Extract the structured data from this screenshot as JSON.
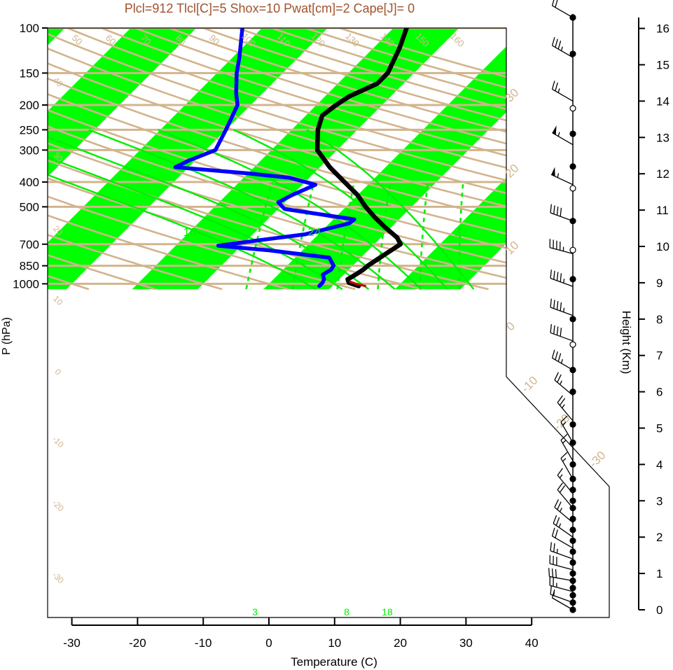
{
  "title": "Plcl=912 Tlcl[C]=5 Shox=10 Pwat[cm]=2 Cape[J]= 0",
  "colors": {
    "title": "#a0522d",
    "stripe": "#00ff00",
    "isobar": "#d2b48c",
    "adiabat": "#d2b48c",
    "moist": "#00ee00",
    "temperature": "#000000",
    "dewpoint": "#0000ff",
    "parcel": "#cc0000"
  },
  "chart_data": {
    "type": "skew-t",
    "title": "Plcl=912 Tlcl[C]=5 Shox=10 Pwat[cm]=2 Cape[J]= 0",
    "xlabel": "Temperature (C)",
    "ylabel": "P (hPa)",
    "y2label": "Height (Km)",
    "x_ticks": [
      "-30",
      "-20",
      "-10",
      "0",
      "10",
      "20",
      "30",
      "40"
    ],
    "p_ticks": [
      "100",
      "150",
      "200",
      "250",
      "300",
      "400",
      "500",
      "700",
      "850",
      "1000"
    ],
    "height_ticks": [
      "0",
      "1",
      "2",
      "3",
      "4",
      "5",
      "6",
      "7",
      "8",
      "9",
      "10",
      "11",
      "12",
      "13",
      "14",
      "15",
      "16"
    ],
    "xlim": [
      -33,
      52
    ],
    "plim": [
      1050,
      100
    ],
    "isotherm_labels": [
      "-30",
      "-20",
      "-10",
      "0",
      "10",
      "20",
      "30"
    ],
    "dry_adiabat_labels": [
      "50",
      "60",
      "70",
      "80",
      "90",
      "100",
      "110",
      "120",
      "130",
      "140",
      "150",
      "160"
    ],
    "mixing_ratio_labels": [
      "3",
      "8",
      "18"
    ],
    "moist_adiabat_labels": [
      "16",
      "24",
      "32"
    ],
    "left_edge_labels": [
      "40",
      "30",
      "20",
      "10",
      "0",
      "-10",
      "-20",
      "-30"
    ],
    "series": [
      {
        "name": "Temperature",
        "points": [
          [
            1020,
            14
          ],
          [
            990,
            12
          ],
          [
            960,
            11.3
          ],
          [
            920,
            11.8
          ],
          [
            880,
            12.2
          ],
          [
            850,
            12.3
          ],
          [
            800,
            12.8
          ],
          [
            750,
            13.4
          ],
          [
            700,
            14
          ],
          [
            660,
            12.5
          ],
          [
            600,
            9
          ],
          [
            550,
            6
          ],
          [
            500,
            3
          ],
          [
            450,
            0
          ],
          [
            400,
            -4
          ],
          [
            350,
            -8.5
          ],
          [
            300,
            -13
          ],
          [
            250,
            -16
          ],
          [
            220,
            -17.5
          ],
          [
            200,
            -17
          ],
          [
            185,
            -16.3
          ],
          [
            165,
            -14
          ],
          [
            150,
            -14
          ],
          [
            120,
            -16
          ],
          [
            100,
            -18
          ]
        ]
      },
      {
        "name": "Dewpoint",
        "points": [
          [
            1020,
            8
          ],
          [
            990,
            8
          ],
          [
            960,
            7.7
          ],
          [
            920,
            6.8
          ],
          [
            880,
            7.3
          ],
          [
            850,
            7.1
          ],
          [
            790,
            5.2
          ],
          [
            740,
            -5
          ],
          [
            710,
            -13.5
          ],
          [
            675,
            -8
          ],
          [
            640,
            -2
          ],
          [
            580,
            3
          ],
          [
            560,
            3.2
          ],
          [
            510,
            -9
          ],
          [
            480,
            -11
          ],
          [
            450,
            -10
          ],
          [
            410,
            -8
          ],
          [
            385,
            -13
          ],
          [
            370,
            -20
          ],
          [
            350,
            -32
          ],
          [
            330,
            -31
          ],
          [
            300,
            -28.5
          ],
          [
            250,
            -30
          ],
          [
            200,
            -32
          ],
          [
            180,
            -34
          ],
          [
            150,
            -37
          ],
          [
            130,
            -39
          ],
          [
            100,
            -43
          ]
        ]
      },
      {
        "name": "Parcel",
        "points": [
          [
            1020,
            15
          ],
          [
            1000,
            13.2
          ],
          [
            980,
            12
          ]
        ]
      }
    ],
    "wind_barbs": [
      {
        "height_km": 0.0,
        "speed_kt": 10,
        "dir_deg": 300
      },
      {
        "height_km": 0.2,
        "speed_kt": 15,
        "dir_deg": 290
      },
      {
        "height_km": 0.5,
        "speed_kt": 25,
        "dir_deg": 285
      },
      {
        "height_km": 0.8,
        "speed_kt": 30,
        "dir_deg": 280
      },
      {
        "height_km": 1.1,
        "speed_kt": 30,
        "dir_deg": 285
      },
      {
        "height_km": 1.4,
        "speed_kt": 25,
        "dir_deg": 290
      },
      {
        "height_km": 1.7,
        "speed_kt": 20,
        "dir_deg": 300
      },
      {
        "height_km": 2.0,
        "speed_kt": 25,
        "dir_deg": 305
      },
      {
        "height_km": 2.4,
        "speed_kt": 25,
        "dir_deg": 310
      },
      {
        "height_km": 2.8,
        "speed_kt": 20,
        "dir_deg": 320
      },
      {
        "height_km": 3.2,
        "speed_kt": 15,
        "dir_deg": 320
      },
      {
        "height_km": 3.6,
        "speed_kt": 15,
        "dir_deg": 330
      },
      {
        "height_km": 4.1,
        "speed_kt": 15,
        "dir_deg": 330
      },
      {
        "height_km": 4.6,
        "speed_kt": 15,
        "dir_deg": 330
      },
      {
        "height_km": 5.2,
        "speed_kt": 25,
        "dir_deg": 320
      },
      {
        "height_km": 5.9,
        "speed_kt": 25,
        "dir_deg": 310
      },
      {
        "height_km": 6.6,
        "speed_kt": 35,
        "dir_deg": 300
      },
      {
        "height_km": 7.4,
        "speed_kt": 40,
        "dir_deg": 290
      },
      {
        "height_km": 8.1,
        "speed_kt": 45,
        "dir_deg": 290
      },
      {
        "height_km": 8.9,
        "speed_kt": 45,
        "dir_deg": 290
      },
      {
        "height_km": 9.8,
        "speed_kt": 45,
        "dir_deg": 285
      },
      {
        "height_km": 10.7,
        "speed_kt": 40,
        "dir_deg": 290
      },
      {
        "height_km": 11.7,
        "speed_kt": 55,
        "dir_deg": 295
      },
      {
        "height_km": 12.8,
        "speed_kt": 55,
        "dir_deg": 300
      },
      {
        "height_km": 14.0,
        "speed_kt": 25,
        "dir_deg": 300
      },
      {
        "height_km": 15.2,
        "speed_kt": 35,
        "dir_deg": 300
      },
      {
        "height_km": 16.3,
        "speed_kt": 20,
        "dir_deg": 300
      }
    ],
    "sounding_levels_km": [
      0,
      0.2,
      0.4,
      0.6,
      0.8,
      1.0,
      1.3,
      1.6,
      1.9,
      2.2,
      2.5,
      2.8,
      3.0,
      3.3,
      3.6,
      4.0,
      4.6,
      5.1,
      6.0,
      6.6,
      7.3,
      8.0,
      9.1,
      9.9,
      10.7,
      11.6,
      12.2,
      13.1,
      13.8,
      15.3,
      16.3
    ],
    "grid": true
  }
}
